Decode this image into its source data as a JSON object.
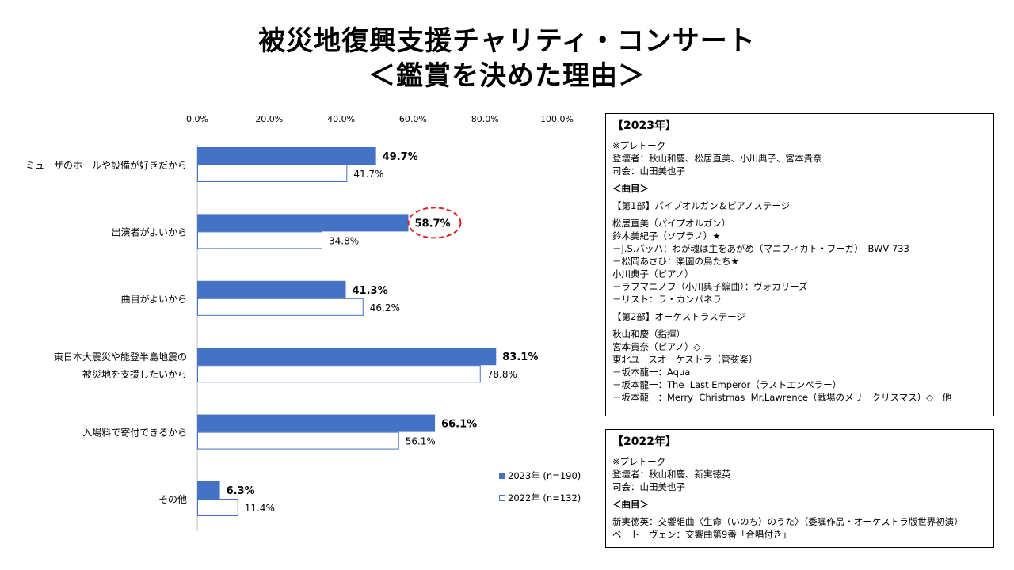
{
  "title": {
    "line1": "被災地復興支援チャリティ・コンサート",
    "line2": "＜鑑賞を決めた理由＞"
  },
  "colors": {
    "series_2023": "#4472C4",
    "series_2022_fill": "#FFFFFF",
    "series_2022_border": "#4472C4",
    "highlight": "#E02020"
  },
  "chart_data": {
    "type": "bar",
    "orientation": "horizontal",
    "categories": [
      [
        "ミューザのホールや設備が好きだから"
      ],
      [
        "出演者がよいから"
      ],
      [
        "曲目がよいから"
      ],
      [
        "東日本大震災や能登半島地震の",
        "被災地を支援したいから"
      ],
      [
        "入場料で寄付できるから"
      ],
      [
        "その他"
      ]
    ],
    "series": [
      {
        "name": "2023年 (n=190)",
        "values": [
          49.7,
          58.7,
          41.3,
          83.1,
          66.1,
          6.3
        ],
        "labels": [
          "49.7%",
          "58.7%",
          "41.3%",
          "83.1%",
          "66.1%",
          "6.3%"
        ]
      },
      {
        "name": "2022年 (n=132)",
        "values": [
          41.7,
          34.8,
          46.2,
          78.8,
          56.1,
          11.4
        ],
        "labels": [
          "41.7%",
          "34.8%",
          "46.2%",
          "78.8%",
          "56.1%",
          "11.4%"
        ]
      }
    ],
    "xlim": [
      0,
      100
    ],
    "ticks": [
      "0.0%",
      "20.0%",
      "40.0%",
      "60.0%",
      "80.0%",
      "100.0%"
    ],
    "highlight": {
      "category_index": 1,
      "series_index": 0
    },
    "legend": "bottom-right",
    "grid": false
  },
  "box2023": {
    "header": "【2023年】",
    "lines": [
      {
        "text": "※プレトーク"
      },
      {
        "text": "登壇者：秋山和慶、松居直美、小川典子、宮本貴奈"
      },
      {
        "text": "司会：山田美也子"
      },
      {
        "gap": true
      },
      {
        "text": "＜曲目＞",
        "bold": true
      },
      {
        "gap": true
      },
      {
        "text": "【第1部】パイプオルガン＆ピアノステージ"
      },
      {
        "gap": true
      },
      {
        "text": "松居直美（パイプオルガン）"
      },
      {
        "text": "鈴木美紀子（ソプラノ）★"
      },
      {
        "text": "－J.S.バッハ：わが魂は主をあがめ（マニフィカト・フーガ）　BWV 733"
      },
      {
        "text": "－松岡あさひ：楽園の鳥たち★"
      },
      {
        "text": "小川典子（ピアノ）"
      },
      {
        "text": "－ラフマニノフ（小川典子編曲）：ヴォカリーズ"
      },
      {
        "text": "－リスト：ラ・カンパネラ"
      },
      {
        "gap": true
      },
      {
        "text": "【第2部】オーケストラステージ"
      },
      {
        "gap": true
      },
      {
        "text": "秋山和慶（指揮）"
      },
      {
        "text": "宮本貴奈（ピアノ）◇"
      },
      {
        "text": "東北ユースオーケストラ（管弦楽）"
      },
      {
        "text": "－坂本龍一：Aqua"
      },
      {
        "text": "－坂本龍一：The  Last Emperor（ラストエンペラー）"
      },
      {
        "text": "－坂本龍一：Merry  Christmas  Mr.Lawrence（戦場のメリークリスマス）◇　他"
      }
    ]
  },
  "box2022": {
    "header": "【2022年】",
    "lines": [
      {
        "text": "※プレトーク"
      },
      {
        "text": "登壇者：秋山和慶、新実徳英"
      },
      {
        "text": "司会：山田美也子"
      },
      {
        "gap": true
      },
      {
        "text": "＜曲目＞",
        "bold": true
      },
      {
        "gap": true
      },
      {
        "text": "新実徳英：交響組曲〈生命（いのち）のうた〉（委嘱作品・オーケストラ版世界初演）"
      },
      {
        "text": "ベートーヴェン：交響曲第9番「合唱付き」"
      }
    ]
  }
}
